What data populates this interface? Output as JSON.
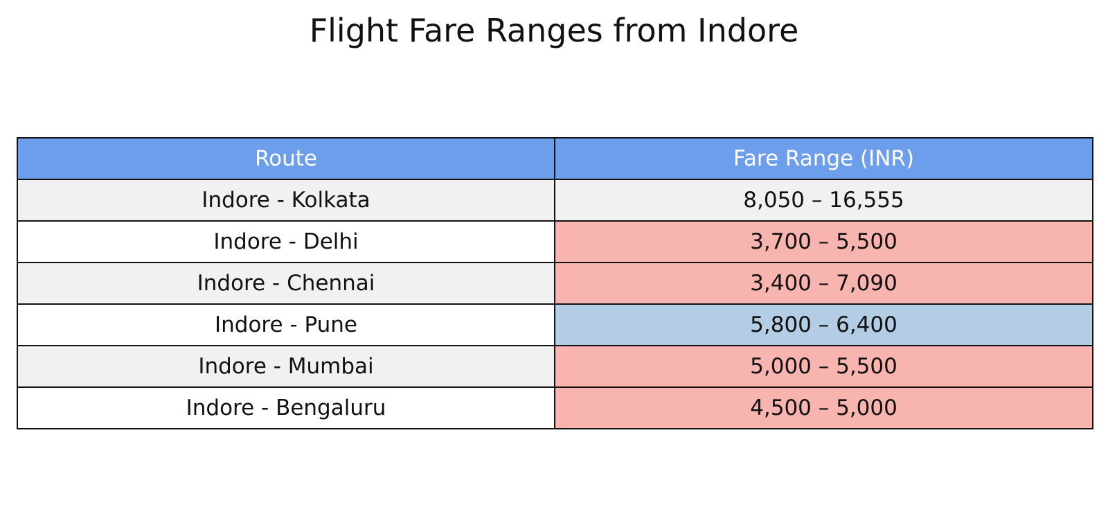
{
  "chart_data": {
    "type": "table",
    "title": "Flight Fare Ranges from Indore",
    "columns": [
      "Route",
      "Fare Range (INR)"
    ],
    "rows": [
      {
        "route": "Indore - Kolkata",
        "fare_range": "8,050 – 16,555",
        "fare_min": 8050,
        "fare_max": 16555
      },
      {
        "route": "Indore - Delhi",
        "fare_range": "3,700 – 5,500",
        "fare_min": 3700,
        "fare_max": 5500
      },
      {
        "route": "Indore - Chennai",
        "fare_range": "3,400 – 7,090",
        "fare_min": 3400,
        "fare_max": 7090
      },
      {
        "route": "Indore - Pune",
        "fare_range": "5,800 – 6,400",
        "fare_min": 5800,
        "fare_max": 6400
      },
      {
        "route": "Indore - Mumbai",
        "fare_range": "5,000 – 5,500",
        "fare_min": 5000,
        "fare_max": 5500
      },
      {
        "route": "Indore - Bengaluru",
        "fare_range": "4,500 – 5,000",
        "fare_min": 4500,
        "fare_max": 5000
      }
    ],
    "colors": {
      "header_bg": "#6d9eeb",
      "header_text": "#ffffff",
      "row_even": "#f1f1f1",
      "row_odd": "#ffffff",
      "fare_highlight_red": "#f8b4ae",
      "fare_highlight_blue": "#b3cde5",
      "border": "#111111"
    },
    "fare_cell_colors": [
      "#f1f1f1",
      "#f8b4ae",
      "#f8b4ae",
      "#b3cde5",
      "#f8b4ae",
      "#f8b4ae"
    ]
  }
}
